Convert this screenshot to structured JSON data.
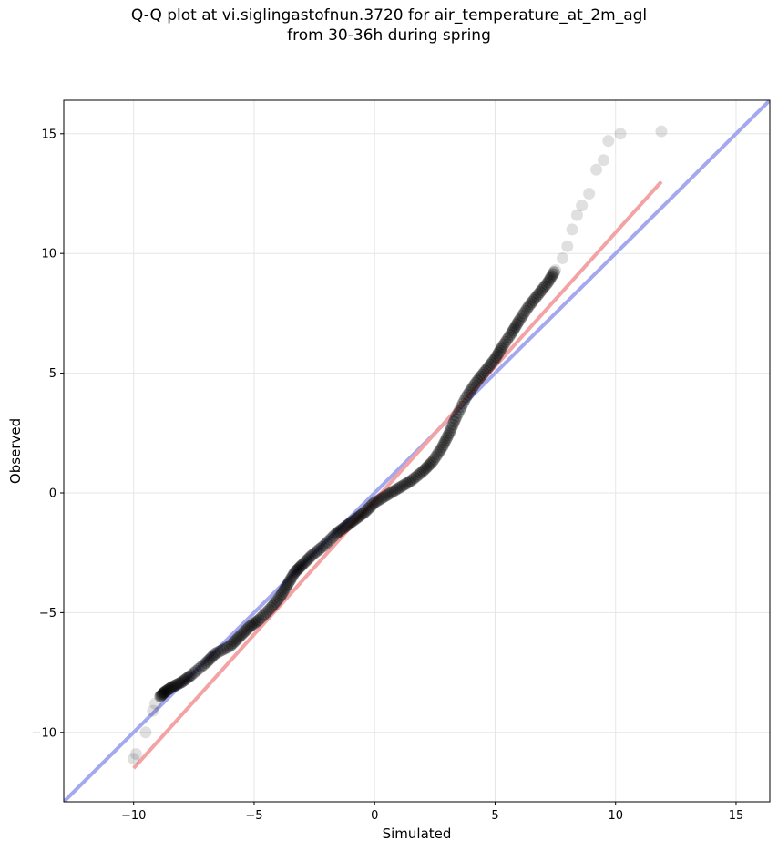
{
  "chart_data": {
    "type": "scatter",
    "title_lines": [
      "Q-Q plot at vi.siglingastofnun.3720 for air_temperature_at_2m_agl",
      "from 30-36h during spring"
    ],
    "xlabel": "Simulated",
    "ylabel": "Observed",
    "xlim": [
      -12.9,
      16.4
    ],
    "ylim": [
      -12.9,
      16.4
    ],
    "xticks": [
      -10,
      -5,
      0,
      5,
      10,
      15
    ],
    "yticks": [
      -10,
      -5,
      0,
      5,
      10,
      15
    ],
    "grid": true,
    "reference_lines": [
      {
        "style": "1:1 line",
        "color": "#a3a8ef",
        "from": [
          -12.9,
          -12.9
        ],
        "to": [
          16.4,
          16.4
        ]
      },
      {
        "style": "fit line",
        "color": "#f3a3a3",
        "from": [
          -10.0,
          -11.5
        ],
        "to": [
          11.9,
          13.0
        ]
      }
    ],
    "points_color": "#000000",
    "points": [
      [
        -10.0,
        -11.1
      ],
      [
        -9.9,
        -10.9
      ],
      [
        -9.5,
        -10.0
      ],
      [
        -9.2,
        -9.1
      ],
      [
        -9.1,
        -8.8
      ],
      [
        -8.9,
        -8.5
      ],
      [
        -8.7,
        -8.3
      ],
      [
        -8.4,
        -8.1
      ],
      [
        -8.0,
        -7.9
      ],
      [
        -7.6,
        -7.6
      ],
      [
        -7.0,
        -7.1
      ],
      [
        -6.6,
        -6.7
      ],
      [
        -6.0,
        -6.4
      ],
      [
        -5.6,
        -6.0
      ],
      [
        -5.2,
        -5.6
      ],
      [
        -4.8,
        -5.3
      ],
      [
        -4.3,
        -4.8
      ],
      [
        -3.9,
        -4.3
      ],
      [
        -3.6,
        -3.8
      ],
      [
        -3.3,
        -3.3
      ],
      [
        -3.0,
        -3.0
      ],
      [
        -2.6,
        -2.6
      ],
      [
        -2.1,
        -2.2
      ],
      [
        -1.6,
        -1.7
      ],
      [
        -1.2,
        -1.4
      ],
      [
        -0.8,
        -1.1
      ],
      [
        -0.4,
        -0.8
      ],
      [
        0.0,
        -0.4
      ],
      [
        0.5,
        -0.1
      ],
      [
        1.0,
        0.2
      ],
      [
        1.5,
        0.5
      ],
      [
        2.0,
        0.9
      ],
      [
        2.4,
        1.3
      ],
      [
        2.8,
        1.9
      ],
      [
        3.1,
        2.5
      ],
      [
        3.4,
        3.2
      ],
      [
        3.8,
        4.0
      ],
      [
        4.2,
        4.6
      ],
      [
        4.6,
        5.1
      ],
      [
        5.0,
        5.6
      ],
      [
        5.3,
        6.1
      ],
      [
        5.7,
        6.7
      ],
      [
        6.0,
        7.2
      ],
      [
        6.4,
        7.8
      ],
      [
        6.8,
        8.3
      ],
      [
        7.2,
        8.8
      ],
      [
        7.5,
        9.3
      ],
      [
        7.8,
        9.8
      ],
      [
        8.0,
        10.3
      ],
      [
        8.2,
        11.0
      ],
      [
        8.4,
        11.6
      ],
      [
        8.6,
        12.0
      ],
      [
        8.9,
        12.5
      ],
      [
        9.2,
        13.5
      ],
      [
        9.5,
        13.9
      ],
      [
        9.7,
        14.7
      ],
      [
        10.2,
        15.0
      ],
      [
        11.9,
        15.1
      ]
    ]
  }
}
